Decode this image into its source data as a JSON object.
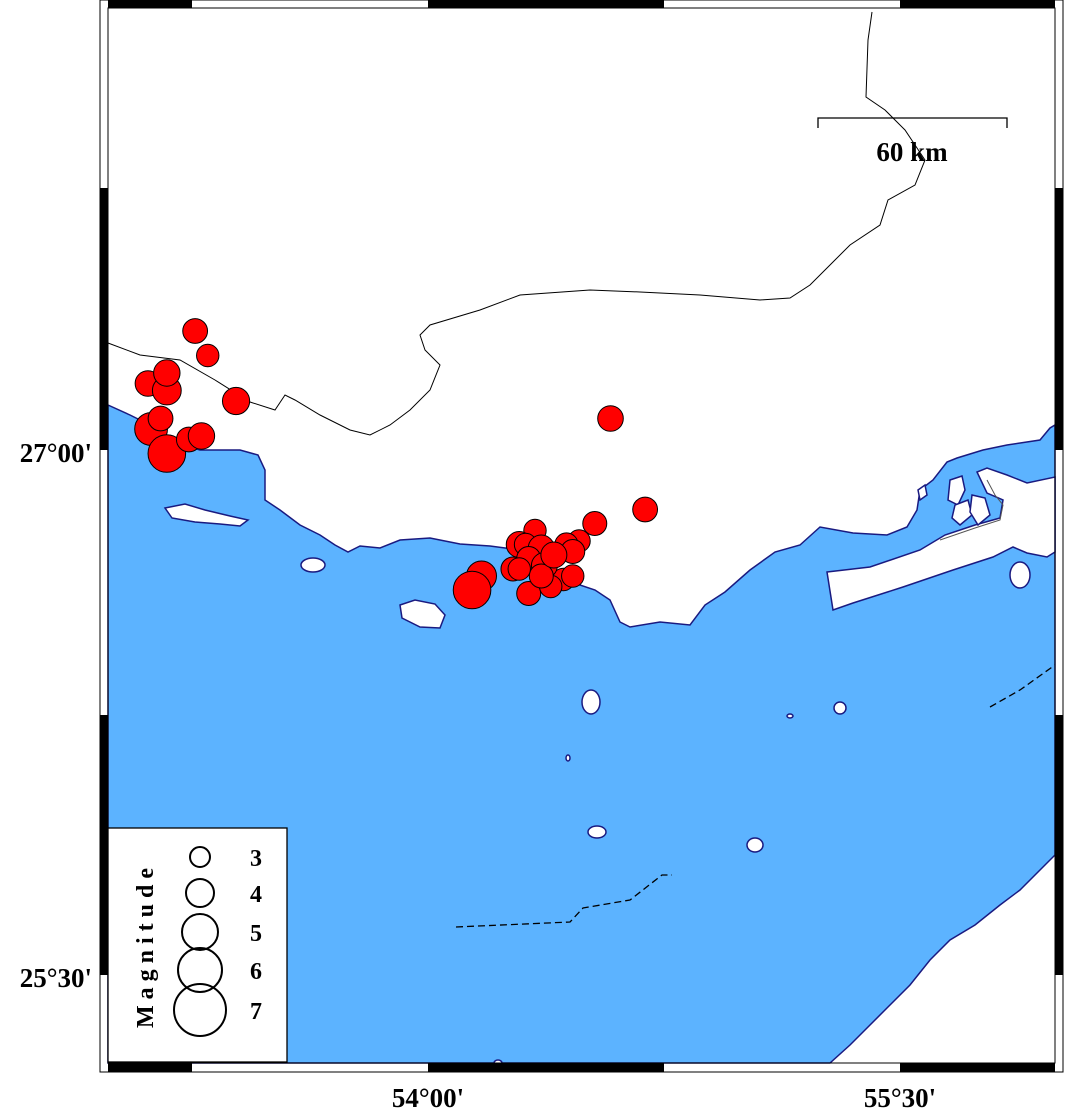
{
  "map": {
    "region": {
      "lon_min": 53.0,
      "lon_max": 56.0,
      "lat_min": 25.25,
      "lat_max": 28.25
    },
    "colors": {
      "sea": "#5cb3ff",
      "land": "#ffffff",
      "coastline": "#1a1a80",
      "border": "#000000",
      "event_fill": "#ff0000",
      "event_stroke": "#000000"
    },
    "lat_labels": [
      "27°00'",
      "25°30'"
    ],
    "lon_labels": [
      "54°00'",
      "55°30'"
    ],
    "scale_bar": {
      "label": "60 km"
    }
  },
  "legend": {
    "title": "Magnitude",
    "entries": [
      {
        "magnitude": 3,
        "label": "3"
      },
      {
        "magnitude": 4,
        "label": "4"
      },
      {
        "magnitude": 5,
        "label": "5"
      },
      {
        "magnitude": 6,
        "label": "6"
      },
      {
        "magnitude": 7,
        "label": "7"
      }
    ]
  },
  "events": [
    {
      "lon": 53.26,
      "lat": 27.34,
      "mag": 3.6
    },
    {
      "lon": 53.3,
      "lat": 27.27,
      "mag": 3.3
    },
    {
      "lon": 53.11,
      "lat": 27.19,
      "mag": 3.7
    },
    {
      "lon": 53.17,
      "lat": 27.17,
      "mag": 4.1
    },
    {
      "lon": 53.17,
      "lat": 27.22,
      "mag": 3.8
    },
    {
      "lon": 53.39,
      "lat": 27.14,
      "mag": 3.9
    },
    {
      "lon": 53.12,
      "lat": 27.06,
      "mag": 4.6
    },
    {
      "lon": 53.15,
      "lat": 27.09,
      "mag": 3.6
    },
    {
      "lon": 53.17,
      "lat": 26.99,
      "mag": 5.2
    },
    {
      "lon": 53.24,
      "lat": 27.03,
      "mag": 3.6
    },
    {
      "lon": 53.28,
      "lat": 27.04,
      "mag": 3.8
    },
    {
      "lon": 54.58,
      "lat": 27.09,
      "mag": 3.7
    },
    {
      "lon": 54.69,
      "lat": 26.83,
      "mag": 3.6
    },
    {
      "lon": 54.53,
      "lat": 26.79,
      "mag": 3.5
    },
    {
      "lon": 54.34,
      "lat": 26.77,
      "mag": 3.3
    },
    {
      "lon": 54.48,
      "lat": 26.74,
      "mag": 3.3
    },
    {
      "lon": 54.44,
      "lat": 26.73,
      "mag": 3.4
    },
    {
      "lon": 54.29,
      "lat": 26.73,
      "mag": 3.75
    },
    {
      "lon": 54.31,
      "lat": 26.73,
      "mag": 3.3
    },
    {
      "lon": 54.36,
      "lat": 26.72,
      "mag": 3.75
    },
    {
      "lon": 54.46,
      "lat": 26.71,
      "mag": 3.5
    },
    {
      "lon": 54.17,
      "lat": 26.64,
      "mag": 4.25
    },
    {
      "lon": 54.14,
      "lat": 26.6,
      "mag": 5.2
    },
    {
      "lon": 54.27,
      "lat": 26.66,
      "mag": 3.5
    },
    {
      "lon": 54.32,
      "lat": 26.69,
      "mag": 3.5
    },
    {
      "lon": 54.32,
      "lat": 26.59,
      "mag": 3.5
    },
    {
      "lon": 54.43,
      "lat": 26.63,
      "mag": 3.3
    },
    {
      "lon": 54.46,
      "lat": 26.64,
      "mag": 3.3
    },
    {
      "lon": 54.39,
      "lat": 26.61,
      "mag": 3.3
    },
    {
      "lon": 54.37,
      "lat": 26.67,
      "mag": 3.75
    },
    {
      "lon": 54.36,
      "lat": 26.64,
      "mag": 3.5
    },
    {
      "lon": 54.29,
      "lat": 26.66,
      "mag": 3.3
    },
    {
      "lon": 54.4,
      "lat": 26.7,
      "mag": 3.75
    }
  ]
}
